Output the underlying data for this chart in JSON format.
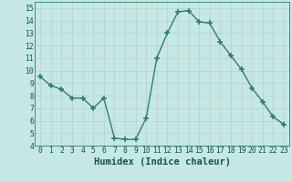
{
  "x": [
    0,
    1,
    2,
    3,
    4,
    5,
    6,
    7,
    8,
    9,
    10,
    11,
    12,
    13,
    14,
    15,
    16,
    17,
    18,
    19,
    20,
    21,
    22,
    23
  ],
  "y": [
    9.5,
    8.8,
    8.5,
    7.8,
    7.8,
    7.0,
    7.8,
    4.6,
    4.5,
    4.5,
    6.2,
    11.0,
    13.0,
    14.7,
    14.8,
    13.9,
    13.8,
    12.3,
    11.2,
    10.1,
    8.6,
    7.5,
    6.3,
    5.7
  ],
  "line_color": "#2e7d6e",
  "marker": "+",
  "marker_size": 4,
  "bg_color": "#c5e8e5",
  "grid_color": "#b8d0cd",
  "xlabel": "Humidex (Indice chaleur)",
  "xlim": [
    -0.5,
    23.5
  ],
  "ylim": [
    4,
    15.5
  ],
  "yticks": [
    4,
    5,
    6,
    7,
    8,
    9,
    10,
    11,
    12,
    13,
    14,
    15
  ],
  "xticks": [
    0,
    1,
    2,
    3,
    4,
    5,
    6,
    7,
    8,
    9,
    10,
    11,
    12,
    13,
    14,
    15,
    16,
    17,
    18,
    19,
    20,
    21,
    22,
    23
  ],
  "tick_label_fontsize": 5.8,
  "xlabel_fontsize": 7.5,
  "linewidth": 1.0,
  "marker_linewidth": 1.2
}
